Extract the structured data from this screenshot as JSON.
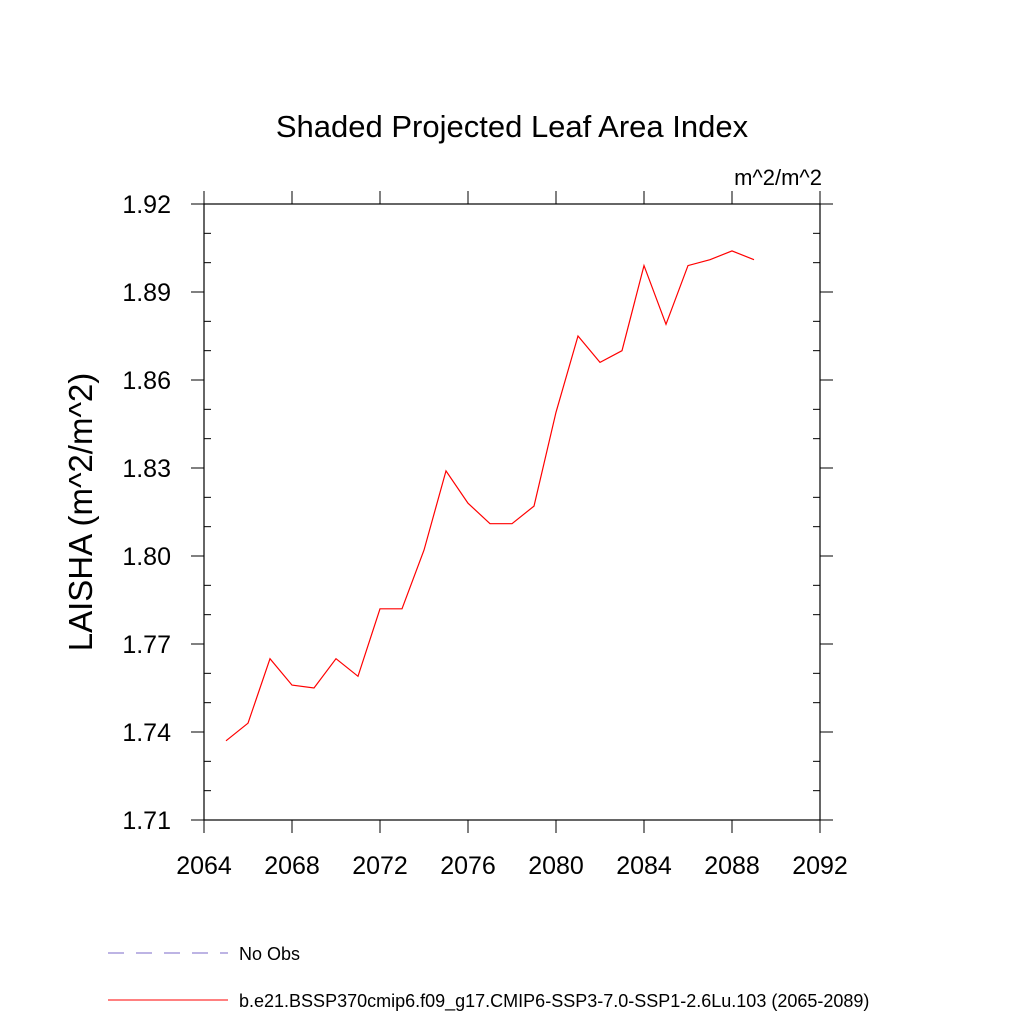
{
  "chart_data": {
    "type": "line",
    "title": "Shaded Projected Leaf Area Index",
    "units_label": "m^2/m^2",
    "xlabel": "",
    "ylabel": "LAISHA  (m^2/m^2)",
    "xlim": [
      2064,
      2092
    ],
    "ylim": [
      1.71,
      1.92
    ],
    "x_ticks": [
      2064,
      2068,
      2072,
      2076,
      2080,
      2084,
      2088,
      2092
    ],
    "y_ticks": [
      1.71,
      1.74,
      1.77,
      1.8,
      1.83,
      1.86,
      1.89,
      1.92
    ],
    "x_tick_labels": [
      "2064",
      "2068",
      "2072",
      "2076",
      "2080",
      "2084",
      "2088",
      "2092"
    ],
    "y_tick_labels": [
      "1.71",
      "1.74",
      "1.77",
      "1.80",
      "1.83",
      "1.86",
      "1.89",
      "1.92"
    ],
    "x_minor_step": 1,
    "y_minor_step": 0.01,
    "grid": false,
    "legend_position": "bottom-left",
    "series": [
      {
        "name": "No Obs",
        "style": "dashed",
        "color": "#7b68c8",
        "x": [],
        "values": []
      },
      {
        "name": "b.e21.BSSP370cmip6.f09_g17.CMIP6-SSP3-7.0-SSP1-2.6Lu.103 (2065-2089)",
        "style": "solid",
        "color": "#ff0000",
        "x": [
          2065,
          2066,
          2067,
          2068,
          2069,
          2070,
          2071,
          2072,
          2073,
          2074,
          2075,
          2076,
          2077,
          2078,
          2079,
          2080,
          2081,
          2082,
          2083,
          2084,
          2085,
          2086,
          2087,
          2088,
          2089
        ],
        "values": [
          1.737,
          1.743,
          1.765,
          1.756,
          1.755,
          1.765,
          1.759,
          1.782,
          1.782,
          1.802,
          1.829,
          1.818,
          1.811,
          1.811,
          1.817,
          1.849,
          1.875,
          1.866,
          1.87,
          1.899,
          1.879,
          1.899,
          1.901,
          1.904,
          1.901
        ]
      }
    ]
  }
}
